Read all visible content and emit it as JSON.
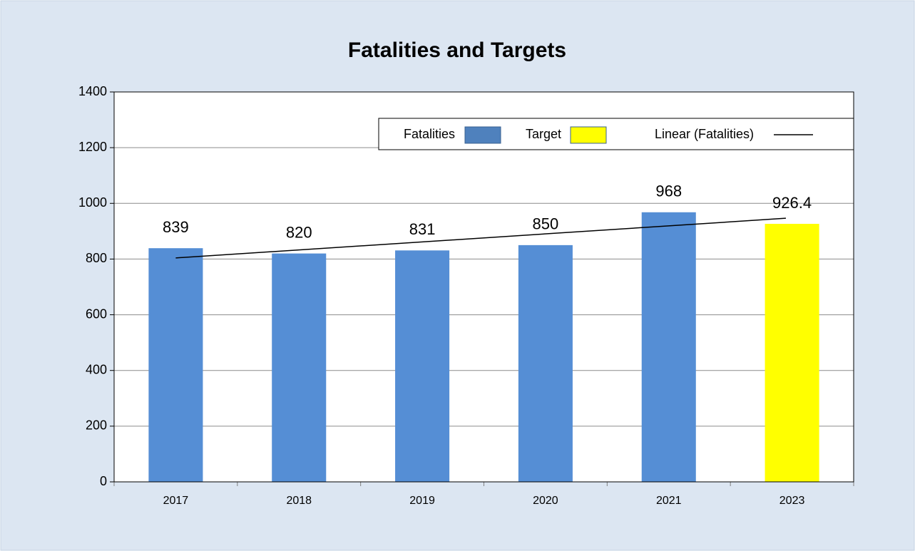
{
  "chart_data": {
    "type": "bar",
    "title": "Fatalities and Targets",
    "categories": [
      "2017",
      "2018",
      "2019",
      "2020",
      "2021",
      "2023"
    ],
    "series": [
      {
        "name": "Fatalities",
        "color": "#558ed5",
        "legend_color": "#4f81bd",
        "values": [
          839,
          820,
          831,
          850,
          968,
          null
        ]
      },
      {
        "name": "Target",
        "color": "#ffff00",
        "values": [
          null,
          null,
          null,
          null,
          null,
          926.4
        ]
      }
    ],
    "trendline": {
      "name": "Linear (Fatalities)",
      "series": 0,
      "color": "#000000"
    },
    "ylim": [
      0,
      1400
    ],
    "yticks": [
      0,
      200,
      400,
      600,
      800,
      1000,
      1200,
      1400
    ],
    "grid": true,
    "legend": "top-right"
  }
}
